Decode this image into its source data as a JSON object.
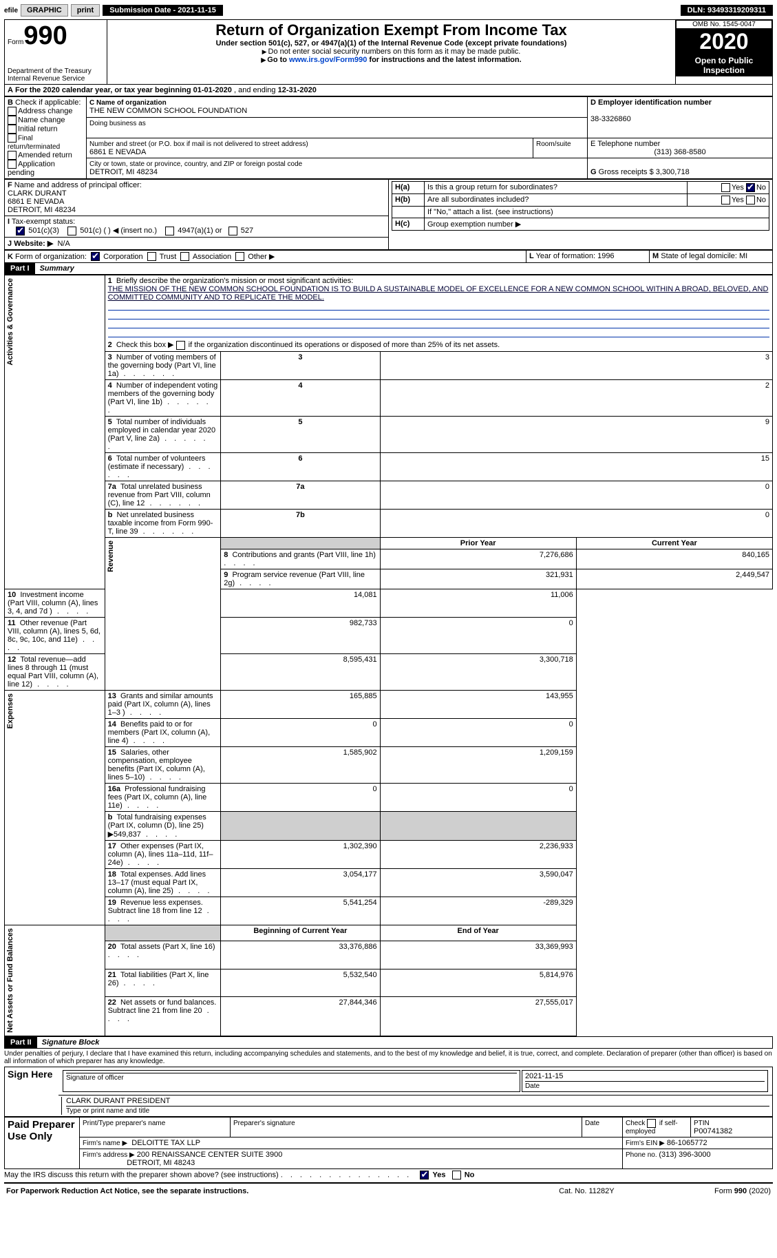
{
  "topbar": {
    "efile_prefix": "efile",
    "efile": "GRAPHIC",
    "print": "print",
    "submission_label": "Submission Date - ",
    "submission_value": "2021-11-15",
    "dln_label": "DLN: ",
    "dln_value": "93493319209311"
  },
  "header": {
    "form_prefix": "Form",
    "form_number": "990",
    "dept1": "Department of the Treasury",
    "dept2": "Internal Revenue Service",
    "title": "Return of Organization Exempt From Income Tax",
    "subtitle": "Under section 501(c), 527, or 4947(a)(1) of the Internal Revenue Code (except private foundations)",
    "instr1": "Do not enter social security numbers on this form as it may be made public.",
    "instr2_pre": "Go to ",
    "instr2_link": "www.irs.gov/Form990",
    "instr2_post": " for instructions and the latest information.",
    "omb": "OMB No. 1545-0047",
    "year": "2020",
    "open_inspection": "Open to Public Inspection"
  },
  "lineA": {
    "prefix": "A",
    "text_pre": "For the 2020 calendar year, or tax year beginning ",
    "begin": "01-01-2020",
    "mid": " , and ending ",
    "end": "12-31-2020"
  },
  "boxB": {
    "label": "B",
    "check_if": "Check if applicable:",
    "items": [
      "Address change",
      "Name change",
      "Initial return",
      "Final return/terminated",
      "Amended return",
      "Application pending"
    ]
  },
  "boxC": {
    "name_label": "C Name of organization",
    "name": "THE NEW COMMON SCHOOL FOUNDATION",
    "dba_label": "Doing business as",
    "dba": "",
    "street_label": "Number and street (or P.O. box if mail is not delivered to street address)",
    "room_label": "Room/suite",
    "street": "6861 E NEVADA",
    "city_label": "City or town, state or province, country, and ZIP or foreign postal code",
    "city": "DETROIT, MI  48234"
  },
  "boxD": {
    "label": "D Employer identification number",
    "value": "38-3326860"
  },
  "boxE": {
    "label": "E Telephone number",
    "value": "(313) 368-8580"
  },
  "boxG": {
    "label": "G",
    "text": "Gross receipts $ ",
    "value": "3,300,718"
  },
  "boxF": {
    "label": "F",
    "text": "Name and address of principal officer:",
    "name": "CLARK DURANT",
    "addr1": "6861 E NEVADA",
    "addr2": "DETROIT, MI  48234"
  },
  "boxH": {
    "ha_label": "H(a)",
    "ha_text": "Is this a group return for subordinates?",
    "hb_label": "H(b)",
    "hb_text": "Are all subordinates included?",
    "hb_note": "If \"No,\" attach a list. (see instructions)",
    "hc_label": "H(c)",
    "hc_text": "Group exemption number ▶",
    "yes": "Yes",
    "no": "No"
  },
  "lineI": {
    "label": "I",
    "text": "Tax-exempt status:",
    "opt1": "501(c)(3)",
    "opt2": "501(c) (    ) ◀ (insert no.)",
    "opt3": "4947(a)(1) or",
    "opt4": "527"
  },
  "lineJ": {
    "label": "J",
    "text": "Website: ▶",
    "value": "N/A"
  },
  "lineK": {
    "label": "K",
    "text": "Form of organization:",
    "corp": "Corporation",
    "trust": "Trust",
    "assoc": "Association",
    "other": "Other ▶"
  },
  "lineL": {
    "label": "L",
    "text": "Year of formation: ",
    "value": "1996"
  },
  "lineM": {
    "label": "M",
    "text": "State of legal domicile: ",
    "value": "MI"
  },
  "part1": {
    "tag": "Part I",
    "title": "Summary",
    "q1_label": "1",
    "q1_text": "Briefly describe the organization's mission or most significant activities:",
    "q1_answer": "THE MISSION OF THE NEW COMMON SCHOOL FOUNDATION IS TO BUILD A SUSTAINABLE MODEL OF EXCELLENCE FOR A NEW COMMON SCHOOL WITHIN A BROAD, BELOVED, AND COMMITTED COMMUNITY AND TO REPLICATE THE MODEL.",
    "q2_label": "2",
    "q2_text": "Check this box ▶",
    "q2_post": "if the organization discontinued its operations or disposed of more than 25% of its net assets.",
    "sideA": "Activities & Governance",
    "sideR": "Revenue",
    "sideE": "Expenses",
    "sideN": "Net Assets or Fund Balances",
    "col_prior": "Prior Year",
    "col_current": "Current Year",
    "col_begin": "Beginning of Current Year",
    "col_end": "End of Year",
    "rows_gov": [
      {
        "n": "3",
        "t": "Number of voting members of the governing body (Part VI, line 1a)",
        "box": "3",
        "v": "3"
      },
      {
        "n": "4",
        "t": "Number of independent voting members of the governing body (Part VI, line 1b)",
        "box": "4",
        "v": "2"
      },
      {
        "n": "5",
        "t": "Total number of individuals employed in calendar year 2020 (Part V, line 2a)",
        "box": "5",
        "v": "9"
      },
      {
        "n": "6",
        "t": "Total number of volunteers (estimate if necessary)",
        "box": "6",
        "v": "15"
      },
      {
        "n": "7a",
        "t": "Total unrelated business revenue from Part VIII, column (C), line 12",
        "box": "7a",
        "v": "0"
      },
      {
        "n": "b",
        "t": "Net unrelated business taxable income from Form 990-T, line 39",
        "box": "7b",
        "v": "0"
      }
    ],
    "rows_rev": [
      {
        "n": "8",
        "t": "Contributions and grants (Part VIII, line 1h)",
        "p": "7,276,686",
        "c": "840,165"
      },
      {
        "n": "9",
        "t": "Program service revenue (Part VIII, line 2g)",
        "p": "321,931",
        "c": "2,449,547"
      },
      {
        "n": "10",
        "t": "Investment income (Part VIII, column (A), lines 3, 4, and 7d )",
        "p": "14,081",
        "c": "11,006"
      },
      {
        "n": "11",
        "t": "Other revenue (Part VIII, column (A), lines 5, 6d, 8c, 9c, 10c, and 11e)",
        "p": "982,733",
        "c": "0"
      },
      {
        "n": "12",
        "t": "Total revenue—add lines 8 through 11 (must equal Part VIII, column (A), line 12)",
        "p": "8,595,431",
        "c": "3,300,718"
      }
    ],
    "rows_exp": [
      {
        "n": "13",
        "t": "Grants and similar amounts paid (Part IX, column (A), lines 1–3 )",
        "p": "165,885",
        "c": "143,955"
      },
      {
        "n": "14",
        "t": "Benefits paid to or for members (Part IX, column (A), line 4)",
        "p": "0",
        "c": "0"
      },
      {
        "n": "15",
        "t": "Salaries, other compensation, employee benefits (Part IX, column (A), lines 5–10)",
        "p": "1,585,902",
        "c": "1,209,159"
      },
      {
        "n": "16a",
        "t": "Professional fundraising fees (Part IX, column (A), line 11e)",
        "p": "0",
        "c": "0"
      },
      {
        "n": "b",
        "t": "Total fundraising expenses (Part IX, column (D), line 25) ▶549,837",
        "p": "",
        "c": "",
        "shaded": true
      },
      {
        "n": "17",
        "t": "Other expenses (Part IX, column (A), lines 11a–11d, 11f–24e)",
        "p": "1,302,390",
        "c": "2,236,933"
      },
      {
        "n": "18",
        "t": "Total expenses. Add lines 13–17 (must equal Part IX, column (A), line 25)",
        "p": "3,054,177",
        "c": "3,590,047"
      },
      {
        "n": "19",
        "t": "Revenue less expenses. Subtract line 18 from line 12",
        "p": "5,541,254",
        "c": "-289,329"
      }
    ],
    "rows_net": [
      {
        "n": "20",
        "t": "Total assets (Part X, line 16)",
        "p": "33,376,886",
        "c": "33,369,993"
      },
      {
        "n": "21",
        "t": "Total liabilities (Part X, line 26)",
        "p": "5,532,540",
        "c": "5,814,976"
      },
      {
        "n": "22",
        "t": "Net assets or fund balances. Subtract line 21 from line 20",
        "p": "27,844,346",
        "c": "27,555,017"
      }
    ]
  },
  "part2": {
    "tag": "Part II",
    "title": "Signature Block",
    "jurat": "Under penalties of perjury, I declare that I have examined this return, including accompanying schedules and statements, and to the best of my knowledge and belief, it is true, correct, and complete. Declaration of preparer (other than officer) is based on all information of which preparer has any knowledge.",
    "sign_here": "Sign Here",
    "sig_officer": "Signature of officer",
    "sig_date": "Date",
    "sig_date_val": "2021-11-15",
    "officer_name": "CLARK DURANT PRESIDENT",
    "officer_name_label": "Type or print name and title",
    "paid_prep": "Paid Preparer Use Only",
    "prep_name_label": "Print/Type preparer's name",
    "prep_sig_label": "Preparer's signature",
    "date_label": "Date",
    "check_if": "Check",
    "self_employed": "if self-employed",
    "ptin_label": "PTIN",
    "ptin": "P00741382",
    "firm_name_label": "Firm's name   ▶",
    "firm_name": "DELOITTE TAX LLP",
    "firm_ein_label": "Firm's EIN ▶",
    "firm_ein": "86-1065772",
    "firm_addr_label": "Firm's address ▶",
    "firm_addr1": "200 RENAISSANCE CENTER SUITE 3900",
    "firm_addr2": "DETROIT, MI  48243",
    "phone_label": "Phone no. ",
    "phone": "(313) 396-3000",
    "irs_discuss": "May the IRS discuss this return with the preparer shown above? (see instructions)",
    "yes": "Yes",
    "no": "No"
  },
  "footer": {
    "pra": "For Paperwork Reduction Act Notice, see the separate instructions.",
    "cat": "Cat. No. 11282Y",
    "form": "Form 990 (2020)"
  }
}
